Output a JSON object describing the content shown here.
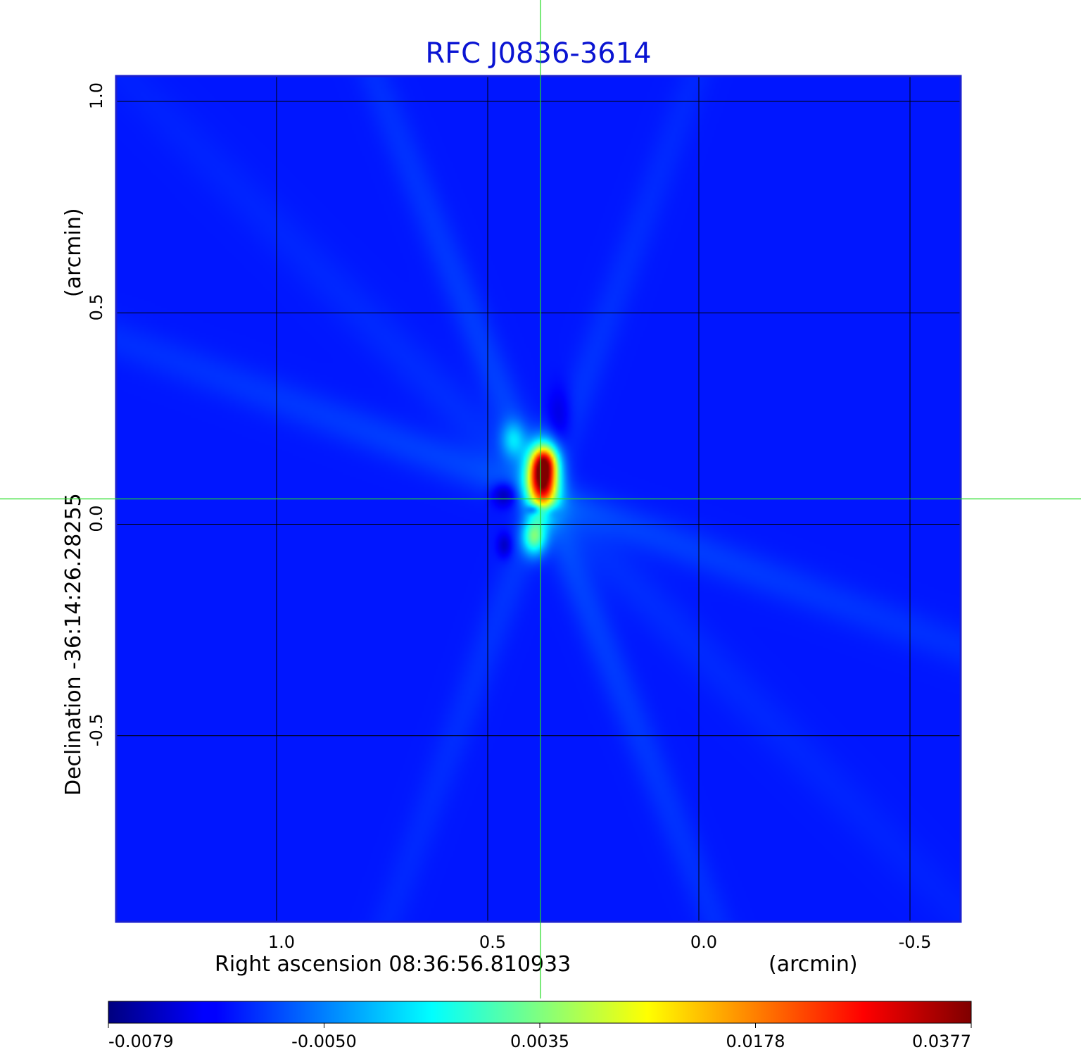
{
  "chart_data": {
    "type": "heatmap",
    "title": "RFC J0836-3614",
    "xlabel": "Right ascension  08:36:56.810933",
    "xunit": "(arcmin)",
    "ylabel": "Declination  -36:14:26.28255",
    "yunit": "(arcmin)",
    "x_axis": {
      "range": [
        1.38,
        -0.62
      ],
      "reversed": true,
      "ticks": [
        1.0,
        0.5,
        0.0,
        -0.5
      ],
      "tick_labels": [
        "1.0",
        "0.5",
        "0.0",
        "-0.5"
      ]
    },
    "y_axis": {
      "range": [
        -0.94,
        1.06
      ],
      "ticks": [
        1.0,
        0.5,
        0.0,
        -0.5
      ],
      "tick_labels": [
        "1.0",
        "0.5",
        "0.0",
        "-0.5"
      ]
    },
    "grid": true,
    "crosshair": {
      "x": 0.375,
      "y": 0.06
    },
    "colorbar": {
      "orientation": "horizontal",
      "placement": "bottom",
      "colormap": "jet",
      "range": [
        -0.0079,
        0.0377
      ],
      "ticks": [
        -0.0079,
        -0.005,
        0.0035,
        0.0178,
        0.0377
      ],
      "tick_labels": [
        "-0.0079",
        "-0.0050",
        "0.0035",
        "0.0178",
        "0.0377"
      ]
    },
    "background_level": -0.0012,
    "peak": {
      "x": 0.37,
      "y": 0.11,
      "value": 0.0377
    },
    "minimum": {
      "x": 0.39,
      "y": 0.035,
      "value": -0.0079
    },
    "features": [
      {
        "x": 0.37,
        "y": 0.11,
        "sx": 0.025,
        "sy": 0.05,
        "value": 0.035
      },
      {
        "x": 0.365,
        "y": 0.15,
        "sx": 0.02,
        "sy": 0.025,
        "value": 0.012
      },
      {
        "x": 0.39,
        "y": -0.03,
        "sx": 0.02,
        "sy": 0.03,
        "value": 0.014
      },
      {
        "x": 0.44,
        "y": 0.2,
        "sx": 0.02,
        "sy": 0.03,
        "value": 0.007
      },
      {
        "x": 0.39,
        "y": 0.035,
        "sx": 0.012,
        "sy": 0.008,
        "value": -0.0078
      },
      {
        "x": 0.46,
        "y": 0.07,
        "sx": 0.02,
        "sy": 0.02,
        "value": -0.0055
      },
      {
        "x": 0.35,
        "y": 0.03,
        "sx": 0.015,
        "sy": 0.012,
        "value": -0.004
      },
      {
        "x": 0.33,
        "y": 0.25,
        "sx": 0.02,
        "sy": 0.05,
        "value": -0.003
      },
      {
        "x": 0.46,
        "y": -0.05,
        "sx": 0.012,
        "sy": 0.02,
        "value": -0.004
      }
    ],
    "streaks": [
      {
        "angle_deg": 68,
        "width": 0.03,
        "value": 0.0022
      },
      {
        "angle_deg": 20,
        "width": 0.035,
        "value": 0.0022
      },
      {
        "angle_deg": -70,
        "width": 0.03,
        "value": 0.0015
      },
      {
        "angle_deg": 45,
        "width": 0.04,
        "value": 0.0012
      }
    ]
  }
}
